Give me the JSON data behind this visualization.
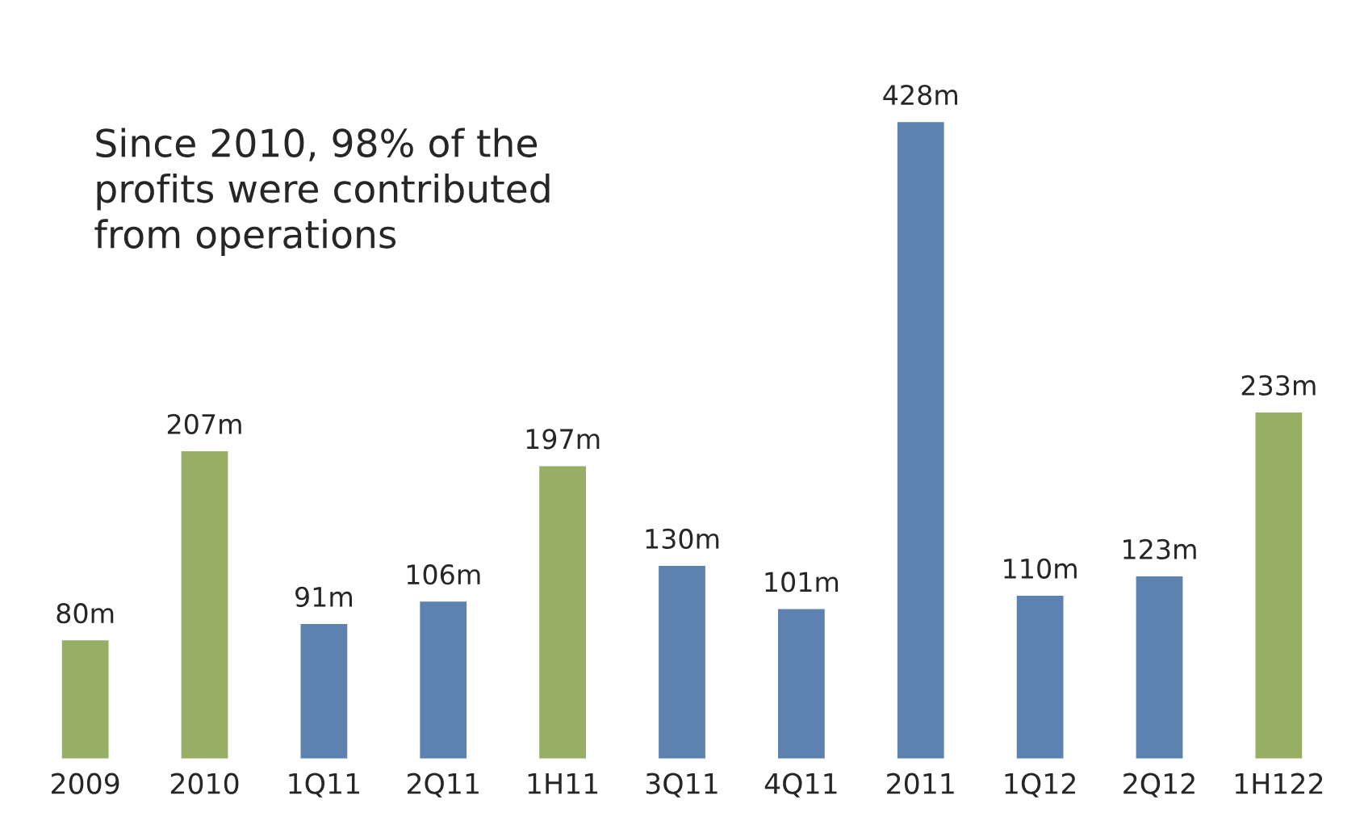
{
  "chart_data": {
    "type": "bar",
    "categories": [
      "2009",
      "2010",
      "1Q11",
      "2Q11",
      "1H11",
      "3Q11",
      "4Q11",
      "2011",
      "1Q12",
      "2Q12",
      "1H122"
    ],
    "values": [
      80,
      207,
      91,
      106,
      197,
      130,
      101,
      428,
      110,
      123,
      233
    ],
    "colors": [
      "#9bbb59",
      "#9bbb59",
      "#4f81bd",
      "#4f81bd",
      "#9bbb59",
      "#4f81bd",
      "#4f81bd",
      "#4f81bd",
      "#4f81bd",
      "#4f81bd",
      "#9bbb59"
    ],
    "value_labels": [
      "80m",
      "207m",
      "91m",
      "106m",
      "197m",
      "130m",
      "101m",
      "428m",
      "110m",
      "123m",
      "233m"
    ],
    "annotations": [
      "Since 2010, 98% of the\nprofits were contributed\nfrom operations"
    ],
    "grid": false,
    "legend": false
  }
}
